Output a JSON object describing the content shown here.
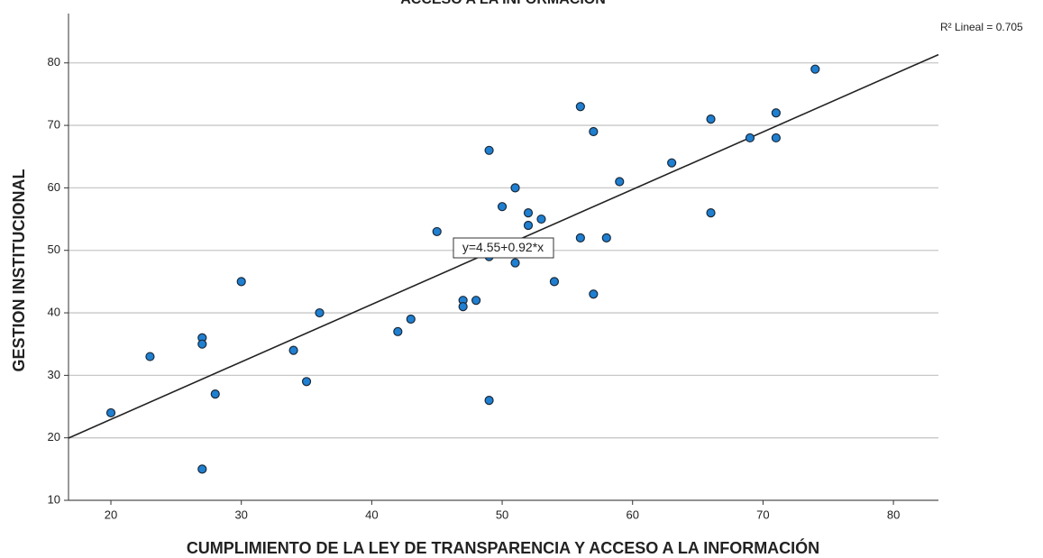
{
  "chart_data": {
    "type": "scatter",
    "title": "ACCESO A LA INFORMACIÓN",
    "x_label": "CUMPLIMIENTO DE LA LEY DE TRANSPARENCIA Y ACCESO A LA INFORMACIÓN",
    "y_label": "GESTION INSTITUCIONAL",
    "r2_label": "R² Lineal = 0.705",
    "fit_label": "y=4.55+0.92*x",
    "fit": {
      "intercept": 4.55,
      "slope": 0.92,
      "color": "#222222"
    },
    "color": "#1f7fd1",
    "grid": true,
    "x": [
      20,
      23,
      27,
      27,
      27,
      28,
      30,
      34,
      35,
      36,
      42,
      43,
      45,
      47,
      47,
      48,
      49,
      49,
      49,
      50,
      51,
      51,
      52,
      52,
      53,
      54,
      56,
      56,
      57,
      57,
      58,
      59,
      63,
      66,
      66,
      69,
      71,
      71,
      74
    ],
    "values": [
      24,
      33,
      36,
      35,
      15,
      27,
      45,
      34,
      29,
      40,
      37,
      39,
      53,
      42,
      41,
      42,
      66,
      49,
      26,
      57,
      60,
      48,
      56,
      54,
      55,
      45,
      73,
      52,
      69,
      43,
      52,
      61,
      64,
      71,
      56,
      68,
      72,
      68,
      79
    ],
    "xlim": [
      16.75,
      83.45
    ],
    "ylim": [
      10,
      87.9
    ],
    "xticks": [
      20,
      30,
      40,
      50,
      60,
      70,
      80
    ],
    "yticks": [
      10,
      20,
      30,
      40,
      50,
      60,
      70,
      80
    ]
  }
}
